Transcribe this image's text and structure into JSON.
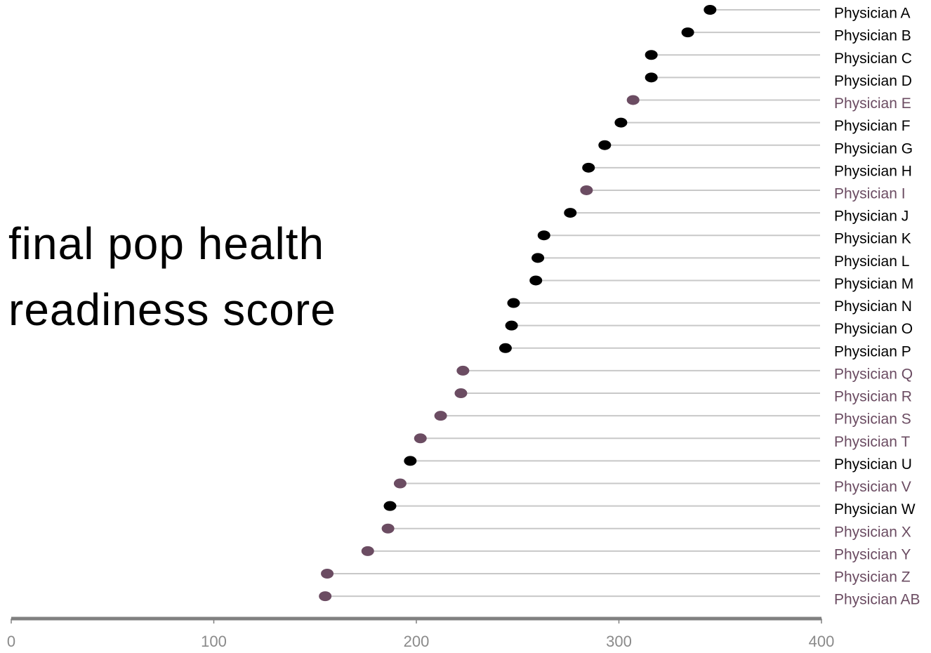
{
  "chart_data": {
    "type": "dot",
    "title": "final pop health readiness score",
    "categories": [
      "Physician A",
      "Physician B",
      "Physician C",
      "Physician D",
      "Physician E",
      "Physician F",
      "Physician G",
      "Physician H",
      "Physician I",
      "Physician J",
      "Physician K",
      "Physician L",
      "Physician M",
      "Physician N",
      "Physician O",
      "Physician P",
      "Physician Q",
      "Physician R",
      "Physician S",
      "Physician T",
      "Physician U",
      "Physician V",
      "Physician W",
      "Physician X",
      "Physician Y",
      "Physician Z",
      "Physician AB"
    ],
    "values": [
      345,
      334,
      316,
      316,
      307,
      301,
      293,
      285,
      284,
      276,
      263,
      260,
      259,
      248,
      247,
      244,
      223,
      222,
      212,
      202,
      197,
      192,
      187,
      186,
      176,
      156,
      155
    ],
    "colors": [
      "#000000",
      "#000000",
      "#000000",
      "#000000",
      "#6b4c62",
      "#000000",
      "#000000",
      "#000000",
      "#6b4c62",
      "#000000",
      "#000000",
      "#000000",
      "#000000",
      "#000000",
      "#000000",
      "#000000",
      "#6b4c62",
      "#6b4c62",
      "#6b4c62",
      "#6b4c62",
      "#000000",
      "#6b4c62",
      "#000000",
      "#6b4c62",
      "#6b4c62",
      "#6b4c62",
      "#6b4c62"
    ],
    "xlim": [
      0,
      400
    ],
    "xticks": [
      0,
      100,
      200,
      300,
      400
    ]
  }
}
